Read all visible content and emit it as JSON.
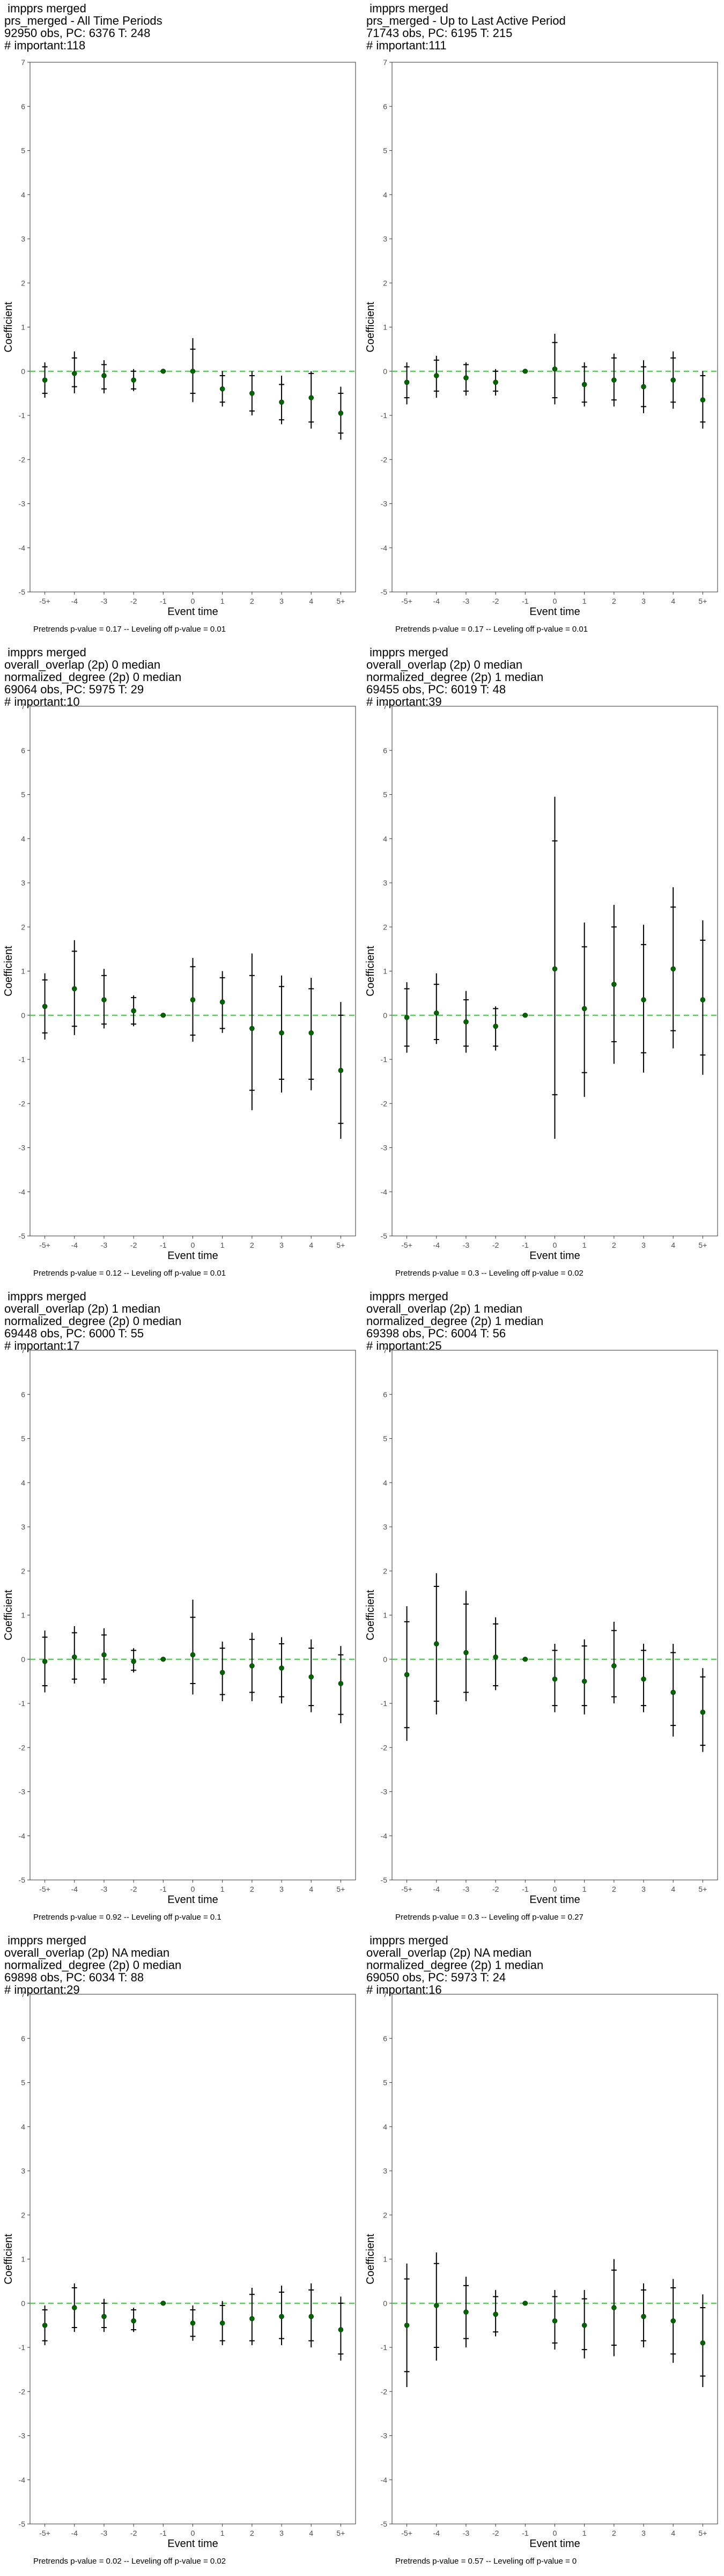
{
  "chart_data": [
    {
      "type": "errorbar",
      "title_lines": [
        " impprs merged",
        "prs_merged - All Time Periods",
        "92950 obs, PC: 6376 T: 248",
        "# important:118"
      ],
      "caption": "Pretrends p-value = 0.17 -- Leveling off p-value = 0.01",
      "xlabel": "Event time",
      "ylabel": "Coefficient",
      "categories": [
        "-5+",
        "-4",
        "-3",
        "-2",
        "-1",
        "0",
        "1",
        "2",
        "3",
        "4",
        "5+"
      ],
      "ylim": [
        -5,
        7
      ],
      "yticks": [
        -5,
        -4,
        -3,
        -2,
        -1,
        0,
        1,
        2,
        3,
        4,
        5,
        6,
        7
      ],
      "estimates": [
        -0.2,
        -0.05,
        -0.1,
        -0.2,
        0.0,
        0.0,
        -0.4,
        -0.5,
        -0.7,
        -0.6,
        -0.95
      ],
      "ci95_low": [
        -0.6,
        -0.5,
        -0.5,
        -0.45,
        0.0,
        -0.7,
        -0.8,
        -1.0,
        -1.2,
        -1.3,
        -1.55
      ],
      "ci95_high": [
        0.2,
        0.45,
        0.25,
        0.05,
        0.0,
        0.75,
        0.0,
        0.0,
        -0.1,
        0.0,
        -0.35
      ],
      "ci90_low": [
        -0.5,
        -0.35,
        -0.4,
        -0.4,
        0.0,
        -0.5,
        -0.7,
        -0.9,
        -1.1,
        -1.15,
        -1.4
      ],
      "ci90_high": [
        0.1,
        0.3,
        0.15,
        0.0,
        0.0,
        0.5,
        -0.1,
        -0.1,
        -0.3,
        -0.05,
        -0.5
      ],
      "reference_line": 0,
      "colors": {
        "point": "#006400",
        "refline": "#33cc33",
        "bar": "#000000"
      }
    },
    {
      "type": "errorbar",
      "title_lines": [
        " impprs merged",
        "prs_merged - Up to Last Active Period",
        "71743 obs, PC: 6195 T: 215",
        "# important:111"
      ],
      "caption": "Pretrends p-value = 0.17 -- Leveling off p-value = 0.01",
      "xlabel": "Event time",
      "ylabel": "Coefficient",
      "categories": [
        "-5+",
        "-4",
        "-3",
        "-2",
        "-1",
        "0",
        "1",
        "2",
        "3",
        "4",
        "5+"
      ],
      "ylim": [
        -5,
        7
      ],
      "yticks": [
        -5,
        -4,
        -3,
        -2,
        -1,
        0,
        1,
        2,
        3,
        4,
        5,
        6,
        7
      ],
      "estimates": [
        -0.25,
        -0.1,
        -0.15,
        -0.25,
        0.0,
        0.05,
        -0.3,
        -0.2,
        -0.35,
        -0.2,
        -0.65
      ],
      "ci95_low": [
        -0.75,
        -0.6,
        -0.55,
        -0.55,
        0.0,
        -0.75,
        -0.8,
        -0.8,
        -0.95,
        -0.85,
        -1.3
      ],
      "ci95_high": [
        0.2,
        0.35,
        0.2,
        0.05,
        0.0,
        0.85,
        0.2,
        0.4,
        0.25,
        0.45,
        0.0
      ],
      "ci90_low": [
        -0.6,
        -0.45,
        -0.45,
        -0.45,
        0.0,
        -0.6,
        -0.7,
        -0.65,
        -0.8,
        -0.7,
        -1.15
      ],
      "ci90_high": [
        0.1,
        0.25,
        0.15,
        0.0,
        0.0,
        0.65,
        0.1,
        0.3,
        0.1,
        0.3,
        -0.1
      ],
      "reference_line": 0,
      "colors": {
        "point": "#006400",
        "refline": "#33cc33",
        "bar": "#000000"
      }
    },
    {
      "type": "errorbar",
      "title_lines": [
        " impprs merged",
        "overall_overlap (2p) 0 median",
        "normalized_degree (2p) 0 median",
        "69064 obs, PC: 5975 T: 29",
        "# important:10"
      ],
      "caption": "Pretrends p-value = 0.12 -- Leveling off p-value = 0.01",
      "xlabel": "Event time",
      "ylabel": "Coefficient",
      "categories": [
        "-5+",
        "-4",
        "-3",
        "-2",
        "-1",
        "0",
        "1",
        "2",
        "3",
        "4",
        "5+"
      ],
      "ylim": [
        -5,
        7
      ],
      "yticks": [
        -5,
        -4,
        -3,
        -2,
        -1,
        0,
        1,
        2,
        3,
        4,
        5,
        6,
        7
      ],
      "estimates": [
        0.2,
        0.6,
        0.35,
        0.1,
        0.0,
        0.35,
        0.3,
        -0.3,
        -0.4,
        -0.4,
        -1.25
      ],
      "ci95_low": [
        -0.55,
        -0.45,
        -0.3,
        -0.25,
        0.0,
        -0.6,
        -0.4,
        -2.15,
        -1.75,
        -1.7,
        -2.8
      ],
      "ci95_high": [
        0.95,
        1.7,
        1.05,
        0.45,
        0.0,
        1.3,
        1.0,
        1.4,
        0.9,
        0.85,
        0.3
      ],
      "ci90_low": [
        -0.4,
        -0.25,
        -0.2,
        -0.2,
        0.0,
        -0.45,
        -0.3,
        -1.7,
        -1.45,
        -1.45,
        -2.45
      ],
      "ci90_high": [
        0.8,
        1.45,
        0.9,
        0.4,
        0.0,
        1.1,
        0.85,
        0.9,
        0.65,
        0.6,
        0.0
      ],
      "reference_line": 0,
      "colors": {
        "point": "#006400",
        "refline": "#33cc33",
        "bar": "#000000"
      }
    },
    {
      "type": "errorbar",
      "title_lines": [
        " impprs merged",
        "overall_overlap (2p) 0 median",
        "normalized_degree (2p) 1 median",
        "69455 obs, PC: 6019 T: 48",
        "# important:39"
      ],
      "caption": "Pretrends p-value = 0.3 -- Leveling off p-value = 0.02",
      "xlabel": "Event time",
      "ylabel": "Coefficient",
      "categories": [
        "-5+",
        "-4",
        "-3",
        "-2",
        "-1",
        "0",
        "1",
        "2",
        "3",
        "4",
        "5+"
      ],
      "ylim": [
        -5,
        7
      ],
      "yticks": [
        -5,
        -4,
        -3,
        -2,
        -1,
        0,
        1,
        2,
        3,
        4,
        5,
        6,
        7
      ],
      "estimates": [
        -0.05,
        0.05,
        -0.15,
        -0.25,
        0.0,
        1.05,
        0.15,
        0.7,
        0.35,
        1.05,
        0.35
      ],
      "ci95_low": [
        -0.85,
        -0.65,
        -0.85,
        -0.8,
        0.0,
        -2.8,
        -1.85,
        -1.1,
        -1.3,
        -0.75,
        -1.35
      ],
      "ci95_high": [
        0.75,
        0.95,
        0.55,
        0.2,
        0.0,
        4.95,
        2.1,
        2.5,
        2.05,
        2.9,
        2.15
      ],
      "ci90_low": [
        -0.7,
        -0.55,
        -0.7,
        -0.7,
        0.0,
        -1.8,
        -1.3,
        -0.6,
        -0.85,
        -0.35,
        -0.9
      ],
      "ci90_high": [
        0.6,
        0.7,
        0.35,
        0.15,
        0.0,
        3.95,
        1.55,
        2.0,
        1.6,
        2.45,
        1.7
      ],
      "reference_line": 0,
      "colors": {
        "point": "#006400",
        "refline": "#33cc33",
        "bar": "#000000"
      }
    },
    {
      "type": "errorbar",
      "title_lines": [
        " impprs merged",
        "overall_overlap (2p) 1 median",
        "normalized_degree (2p) 0 median",
        "69448 obs, PC: 6000 T: 55",
        "# important:17"
      ],
      "caption": "Pretrends p-value = 0.92 -- Leveling off p-value = 0.1",
      "xlabel": "Event time",
      "ylabel": "Coefficient",
      "categories": [
        "-5+",
        "-4",
        "-3",
        "-2",
        "-1",
        "0",
        "1",
        "2",
        "3",
        "4",
        "5+"
      ],
      "ylim": [
        -5,
        7
      ],
      "yticks": [
        -5,
        -4,
        -3,
        -2,
        -1,
        0,
        1,
        2,
        3,
        4,
        5,
        6,
        7
      ],
      "estimates": [
        -0.05,
        0.05,
        0.1,
        -0.05,
        0.0,
        0.1,
        -0.3,
        -0.15,
        -0.2,
        -0.4,
        -0.55
      ],
      "ci95_low": [
        -0.75,
        -0.55,
        -0.55,
        -0.3,
        0.0,
        -0.8,
        -0.95,
        -0.95,
        -1.0,
        -1.2,
        -1.45
      ],
      "ci95_high": [
        0.65,
        0.75,
        0.7,
        0.25,
        0.0,
        1.35,
        0.4,
        0.6,
        0.5,
        0.45,
        0.3
      ],
      "ci90_low": [
        -0.6,
        -0.45,
        -0.45,
        -0.25,
        0.0,
        -0.55,
        -0.8,
        -0.75,
        -0.85,
        -1.05,
        -1.25
      ],
      "ci90_high": [
        0.5,
        0.6,
        0.55,
        0.2,
        0.0,
        0.95,
        0.25,
        0.45,
        0.35,
        0.25,
        0.1
      ],
      "reference_line": 0,
      "colors": {
        "point": "#006400",
        "refline": "#33cc33",
        "bar": "#000000"
      }
    },
    {
      "type": "errorbar",
      "title_lines": [
        " impprs merged",
        "overall_overlap (2p) 1 median",
        "normalized_degree (2p) 1 median",
        "69398 obs, PC: 6004 T: 56",
        "# important:25"
      ],
      "caption": "Pretrends p-value = 0.3 -- Leveling off p-value = 0.27",
      "xlabel": "Event time",
      "ylabel": "Coefficient",
      "categories": [
        "-5+",
        "-4",
        "-3",
        "-2",
        "-1",
        "0",
        "1",
        "2",
        "3",
        "4",
        "5+"
      ],
      "ylim": [
        -5,
        7
      ],
      "yticks": [
        -5,
        -4,
        -3,
        -2,
        -1,
        0,
        1,
        2,
        3,
        4,
        5,
        6,
        7
      ],
      "estimates": [
        -0.35,
        0.35,
        0.15,
        0.05,
        0.0,
        -0.45,
        -0.5,
        -0.15,
        -0.45,
        -0.75,
        -1.2
      ],
      "ci95_low": [
        -1.85,
        -1.25,
        -0.95,
        -0.7,
        0.0,
        -1.2,
        -1.25,
        -1.0,
        -1.2,
        -1.75,
        -2.1
      ],
      "ci95_high": [
        1.2,
        1.95,
        1.55,
        0.95,
        0.0,
        0.35,
        0.45,
        0.85,
        0.35,
        0.35,
        -0.2
      ],
      "ci90_low": [
        -1.55,
        -0.95,
        -0.75,
        -0.6,
        0.0,
        -1.05,
        -1.05,
        -0.85,
        -1.05,
        -1.5,
        -1.95
      ],
      "ci90_high": [
        0.85,
        1.65,
        1.25,
        0.8,
        0.0,
        0.2,
        0.3,
        0.65,
        0.2,
        0.15,
        -0.4
      ],
      "reference_line": 0,
      "colors": {
        "point": "#006400",
        "refline": "#33cc33",
        "bar": "#000000"
      }
    },
    {
      "type": "errorbar",
      "title_lines": [
        " impprs merged",
        "overall_overlap (2p) NA median",
        "normalized_degree (2p) 0 median",
        "69898 obs, PC: 6034 T: 88",
        "# important:29"
      ],
      "caption": "Pretrends p-value = 0.02 -- Leveling off p-value = 0.02",
      "xlabel": "Event time",
      "ylabel": "Coefficient",
      "categories": [
        "-5+",
        "-4",
        "-3",
        "-2",
        "-1",
        "0",
        "1",
        "2",
        "3",
        "4",
        "5+"
      ],
      "ylim": [
        -5,
        7
      ],
      "yticks": [
        -5,
        -4,
        -3,
        -2,
        -1,
        0,
        1,
        2,
        3,
        4,
        5,
        6,
        7
      ],
      "estimates": [
        -0.5,
        -0.1,
        -0.3,
        -0.4,
        0.0,
        -0.45,
        -0.45,
        -0.35,
        -0.3,
        -0.3,
        -0.6
      ],
      "ci95_low": [
        -0.95,
        -0.65,
        -0.65,
        -0.65,
        0.0,
        -0.85,
        -0.95,
        -0.95,
        -0.95,
        -1.0,
        -1.3
      ],
      "ci95_high": [
        -0.05,
        0.45,
        0.1,
        -0.1,
        0.0,
        -0.05,
        0.05,
        0.35,
        0.4,
        0.45,
        0.15
      ],
      "ci90_low": [
        -0.85,
        -0.55,
        -0.55,
        -0.6,
        0.0,
        -0.75,
        -0.85,
        -0.85,
        -0.8,
        -0.85,
        -1.15
      ],
      "ci90_high": [
        -0.15,
        0.35,
        0.0,
        -0.15,
        0.0,
        -0.15,
        -0.05,
        0.2,
        0.25,
        0.3,
        0.0
      ],
      "reference_line": 0,
      "colors": {
        "point": "#006400",
        "refline": "#33cc33",
        "bar": "#000000"
      }
    },
    {
      "type": "errorbar",
      "title_lines": [
        " impprs merged",
        "overall_overlap (2p) NA median",
        "normalized_degree (2p) 1 median",
        "69050 obs, PC: 5973 T: 24",
        "# important:16"
      ],
      "caption": "Pretrends p-value = 0.57 -- Leveling off p-value = 0",
      "xlabel": "Event time",
      "ylabel": "Coefficient",
      "categories": [
        "-5+",
        "-4",
        "-3",
        "-2",
        "-1",
        "0",
        "1",
        "2",
        "3",
        "4",
        "5+"
      ],
      "ylim": [
        -5,
        7
      ],
      "yticks": [
        -5,
        -4,
        -3,
        -2,
        -1,
        0,
        1,
        2,
        3,
        4,
        5,
        6,
        7
      ],
      "estimates": [
        -0.5,
        -0.05,
        -0.2,
        -0.25,
        0.0,
        -0.4,
        -0.5,
        -0.1,
        -0.3,
        -0.4,
        -0.9
      ],
      "ci95_low": [
        -1.9,
        -1.3,
        -1.0,
        -0.75,
        0.0,
        -1.05,
        -1.25,
        -1.2,
        -1.0,
        -1.35,
        -1.9
      ],
      "ci95_high": [
        0.9,
        1.15,
        0.6,
        0.3,
        0.0,
        0.3,
        0.3,
        1.0,
        0.45,
        0.55,
        0.2
      ],
      "ci90_low": [
        -1.55,
        -1.0,
        -0.8,
        -0.65,
        0.0,
        -0.9,
        -1.05,
        -0.95,
        -0.85,
        -1.15,
        -1.65
      ],
      "ci90_high": [
        0.55,
        0.9,
        0.4,
        0.15,
        0.0,
        0.15,
        0.1,
        0.75,
        0.3,
        0.35,
        -0.1
      ],
      "reference_line": 0,
      "colors": {
        "point": "#006400",
        "refline": "#33cc33",
        "bar": "#000000"
      }
    }
  ]
}
